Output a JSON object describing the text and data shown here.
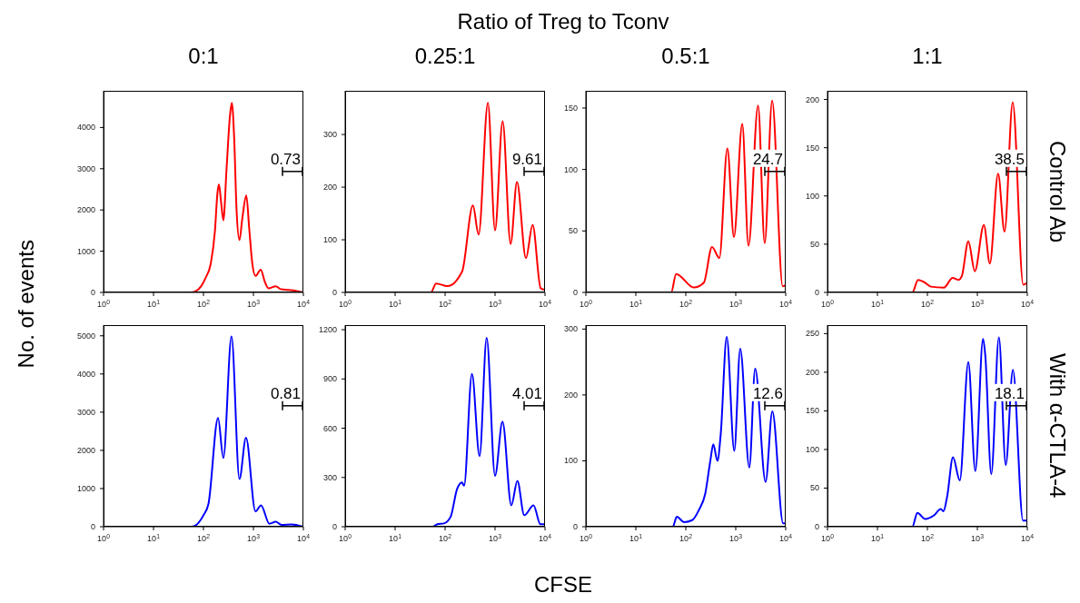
{
  "chart_data": [
    {
      "type": "other",
      "title": "Ratio of Treg to Tconv",
      "xlabel": "CFSE",
      "ylabel": "No. of events"
    },
    {
      "type": "line",
      "title": "0:1",
      "log": "x",
      "color": "#ff0000",
      "xlim": [
        1,
        10000
      ],
      "xticks": [
        {
          "value": 1,
          "label": "10$^{0}$"
        },
        {
          "value": 10,
          "label": "10$^{1}$"
        },
        {
          "value": 100,
          "label": "10$^{2}$"
        },
        {
          "value": 1000,
          "label": "10$^{3}$"
        },
        {
          "value": 10000,
          "label": "10$^{4}$"
        }
      ],
      "ylim": [
        0,
        4890
      ],
      "yticks": [
        0,
        1000,
        2000,
        3000,
        4000
      ],
      "annotations": [
        "0.73"
      ],
      "x": [
        1,
        55,
        70,
        90,
        110,
        140,
        170,
        190,
        204,
        225,
        250,
        290,
        340,
        370,
        410,
        460,
        525,
        600,
        720,
        830,
        950,
        1100,
        1400,
        1700,
        2000,
        2800,
        3500,
        5000,
        7000,
        10000
      ],
      "values": [
        0,
        0,
        30,
        150,
        350,
        700,
        1500,
        2400,
        2620,
        2200,
        1750,
        3000,
        4300,
        4600,
        3800,
        2000,
        1270,
        1800,
        2350,
        1500,
        700,
        400,
        550,
        250,
        100,
        150,
        80,
        60,
        40,
        0
      ]
    },
    {
      "type": "line",
      "title": "0.25:1",
      "log": "x",
      "color": "#ff0000",
      "xlim": [
        1,
        10000
      ],
      "xticks": [
        {
          "value": 1,
          "label": "10$^{0}$"
        },
        {
          "value": 10,
          "label": "10$^{1}$"
        },
        {
          "value": 100,
          "label": "10$^{2}$"
        },
        {
          "value": 1000,
          "label": "10$^{3}$"
        },
        {
          "value": 10000,
          "label": "10$^{4}$"
        }
      ],
      "ylim": [
        0,
        383
      ],
      "yticks": [
        0,
        100,
        200,
        300
      ],
      "annotations": [
        "9.61"
      ],
      "x": [
        1,
        52,
        66,
        112,
        220,
        360,
        470,
        720,
        1000,
        1420,
        2050,
        2750,
        4150,
        5650,
        8200,
        10000
      ],
      "values": [
        0,
        0,
        17,
        12,
        40,
        165,
        110,
        360,
        118,
        325,
        92,
        210,
        65,
        128,
        8,
        5
      ]
    },
    {
      "type": "line",
      "title": "0.5:1",
      "log": "x",
      "color": "#ff0000",
      "xlim": [
        1,
        10000
      ],
      "xticks": [
        {
          "value": 1,
          "label": "10$^{0}$"
        },
        {
          "value": 10,
          "label": "10$^{1}$"
        },
        {
          "value": 100,
          "label": "10$^{2}$"
        },
        {
          "value": 1000,
          "label": "10$^{3}$"
        },
        {
          "value": 10000,
          "label": "10$^{4}$"
        }
      ],
      "ylim": [
        0,
        164
      ],
      "yticks": [
        0,
        50,
        100,
        150
      ],
      "annotations": [
        "24.7"
      ],
      "x": [
        1,
        51,
        64,
        145,
        230,
        335,
        470,
        680,
        920,
        1350,
        1800,
        2800,
        3800,
        5350,
        8700,
        10000
      ],
      "values": [
        0,
        0,
        15,
        4,
        8,
        37,
        28,
        117,
        45,
        137,
        38,
        152,
        40,
        156,
        5,
        6
      ]
    },
    {
      "type": "line",
      "title": "1:1",
      "y2label": "Control Ab",
      "log": "x",
      "color": "#ff0000",
      "xlim": [
        1,
        10000
      ],
      "xticks": [
        {
          "value": 1,
          "label": "10$^{0}$"
        },
        {
          "value": 10,
          "label": "10$^{1}$"
        },
        {
          "value": 100,
          "label": "10$^{2}$"
        },
        {
          "value": 1000,
          "label": "10$^{3}$"
        },
        {
          "value": 10000,
          "label": "10$^{4}$"
        }
      ],
      "ylim": [
        0,
        209
      ],
      "yticks": [
        0,
        50,
        100,
        150,
        200
      ],
      "annotations": [
        "38.5"
      ],
      "x": [
        1,
        50,
        65,
        90,
        117,
        214,
        320,
        420,
        490,
        660,
        890,
        1350,
        1780,
        2600,
        3500,
        5100,
        8300,
        10000
      ],
      "values": [
        0,
        0,
        13,
        10,
        6,
        5,
        15,
        13,
        17,
        53,
        22,
        70,
        30,
        123,
        63,
        197,
        8,
        10
      ]
    },
    {
      "type": "line",
      "log": "x",
      "color": "#0000ff",
      "xlim": [
        1,
        10000
      ],
      "xticks": [
        {
          "value": 1,
          "label": "10$^{0}$"
        },
        {
          "value": 10,
          "label": "10$^{1}$"
        },
        {
          "value": 100,
          "label": "10$^{2}$"
        },
        {
          "value": 1000,
          "label": "10$^{3}$"
        },
        {
          "value": 10000,
          "label": "10$^{4}$"
        }
      ],
      "ylim": [
        0,
        5280
      ],
      "yticks": [
        0,
        1000,
        2000,
        3000,
        4000,
        5000
      ],
      "annotations": [
        "0.81"
      ],
      "x": [
        1,
        59,
        100,
        126,
        196,
        250,
        364,
        525,
        710,
        1100,
        1420,
        2080,
        2800,
        3650,
        5750,
        10000
      ],
      "values": [
        0,
        0,
        300,
        600,
        2850,
        1800,
        4980,
        1250,
        2330,
        400,
        560,
        80,
        130,
        50,
        60,
        0
      ]
    },
    {
      "type": "line",
      "log": "x",
      "color": "#0000ff",
      "xlim": [
        1,
        10000
      ],
      "xticks": [
        {
          "value": 1,
          "label": "10$^{0}$"
        },
        {
          "value": 10,
          "label": "10$^{1}$"
        },
        {
          "value": 100,
          "label": "10$^{2}$"
        },
        {
          "value": 1000,
          "label": "10$^{3}$"
        },
        {
          "value": 10000,
          "label": "10$^{4}$"
        }
      ],
      "ylim": [
        0,
        1228
      ],
      "yticks": [
        0,
        300,
        600,
        900,
        1200
      ],
      "annotations": [
        "4.01"
      ],
      "x": [
        1,
        56,
        70,
        95,
        129,
        174,
        218,
        240,
        345,
        490,
        680,
        1000,
        1410,
        2120,
        2800,
        3840,
        5900,
        8100,
        10000
      ],
      "values": [
        0,
        0,
        15,
        20,
        60,
        230,
        270,
        250,
        930,
        430,
        1150,
        310,
        640,
        130,
        280,
        70,
        130,
        15,
        15
      ]
    },
    {
      "type": "line",
      "log": "x",
      "color": "#0000ff",
      "xlim": [
        1,
        10000
      ],
      "xticks": [
        {
          "value": 1,
          "label": "10$^{0}$"
        },
        {
          "value": 10,
          "label": "10$^{1}$"
        },
        {
          "value": 100,
          "label": "10$^{2}$"
        },
        {
          "value": 1000,
          "label": "10$^{3}$"
        },
        {
          "value": 10000,
          "label": "10$^{4}$"
        }
      ],
      "ylim": [
        0,
        306
      ],
      "yticks": [
        0,
        100,
        200,
        300
      ],
      "annotations": [
        "12.6"
      ],
      "x": [
        1,
        55,
        66,
        93,
        135,
        182,
        245,
        310,
        355,
        430,
        500,
        660,
        935,
        1230,
        1870,
        2450,
        3960,
        5400,
        8900,
        10000
      ],
      "values": [
        0,
        0,
        15,
        7,
        10,
        25,
        50,
        100,
        125,
        100,
        140,
        288,
        115,
        270,
        90,
        240,
        68,
        175,
        5,
        5
      ]
    },
    {
      "type": "line",
      "y2label": "With α-CTLA-4",
      "log": "x",
      "color": "#0000ff",
      "xlim": [
        1,
        10000
      ],
      "xticks": [
        {
          "value": 1,
          "label": "10$^{0}$"
        },
        {
          "value": 10,
          "label": "10$^{1}$"
        },
        {
          "value": 100,
          "label": "10$^{2}$"
        },
        {
          "value": 1000,
          "label": "10$^{3}$"
        },
        {
          "value": 10000,
          "label": "10$^{4}$"
        }
      ],
      "ylim": [
        0,
        261
      ],
      "yticks": [
        0,
        50,
        100,
        150,
        200,
        250
      ],
      "annotations": [
        "18.1"
      ],
      "x": [
        1,
        50,
        63,
        90,
        137,
        185,
        209,
        250,
        325,
        445,
        660,
        910,
        1300,
        1440,
        1900,
        2700,
        3700,
        5150,
        8200,
        10000
      ],
      "values": [
        0,
        0,
        18,
        10,
        15,
        23,
        20,
        40,
        90,
        60,
        213,
        72,
        243,
        222,
        68,
        245,
        80,
        203,
        8,
        8
      ]
    }
  ]
}
